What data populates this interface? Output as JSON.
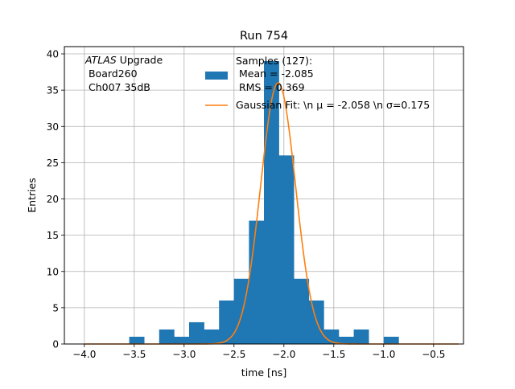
{
  "chart_data": {
    "type": "bar",
    "title": "Run 754",
    "xlabel": "time [ns]",
    "ylabel": "Entries",
    "xlim": [
      -4.2,
      -0.2
    ],
    "ylim": [
      0,
      41
    ],
    "grid": true,
    "xticks": [
      -4.0,
      -3.5,
      -3.0,
      -2.5,
      -2.0,
      -1.5,
      -1.0,
      -0.5
    ],
    "xtick_labels": [
      "−4.0",
      "−3.5",
      "−3.0",
      "−2.5",
      "−2.0",
      "−1.5",
      "−1.0",
      "−0.5"
    ],
    "yticks": [
      0,
      5,
      10,
      15,
      20,
      25,
      30,
      35,
      40
    ],
    "ytick_labels": [
      "0",
      "5",
      "10",
      "15",
      "20",
      "25",
      "30",
      "35",
      "40"
    ],
    "histogram": {
      "color": "#1f77b4",
      "bin_edges": [
        -4.0,
        -3.85,
        -3.7,
        -3.55,
        -3.4,
        -3.25,
        -3.1,
        -2.95,
        -2.8,
        -2.65,
        -2.5,
        -2.35,
        -2.2,
        -2.05,
        -1.9,
        -1.75,
        -1.6,
        -1.45,
        -1.3,
        -1.15,
        -1.0,
        -0.85,
        -0.7,
        -0.55,
        -0.4,
        -0.25
      ],
      "counts": [
        0,
        0,
        0,
        1,
        0,
        2,
        1,
        3,
        2,
        6,
        9,
        17,
        39,
        26,
        9,
        6,
        2,
        1,
        2,
        0,
        1,
        0,
        0,
        0,
        0
      ]
    },
    "fit": {
      "color": "#ff7f0e",
      "amplitude": 36.0,
      "mean": -2.058,
      "sigma": 0.175
    },
    "annotation": {
      "atlas_italic": "ATLAS",
      "atlas_rest": " Upgrade",
      "line2": " Board260",
      "line3": " Ch007 35dB"
    },
    "legend": {
      "position": "upper-center",
      "hist_label_lines": [
        "Samples (127):",
        " Mean = -2.085",
        " RMS = 0.369"
      ],
      "fit_label": "Gaussian Fit: \\n μ = -2.058 \\n σ=0.175"
    }
  }
}
